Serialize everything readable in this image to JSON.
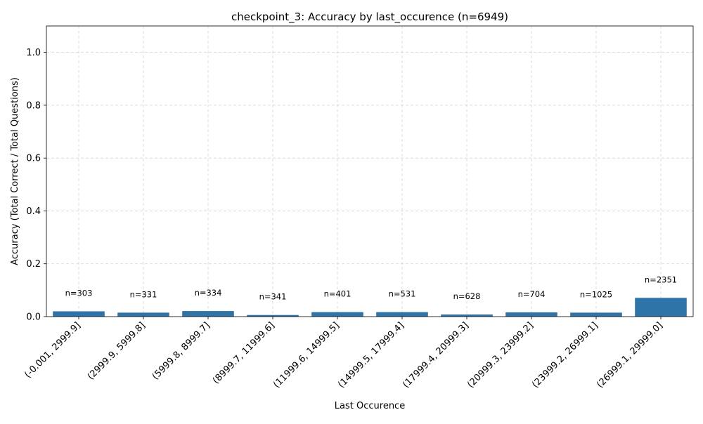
{
  "chart_data": {
    "type": "bar",
    "title": "checkpoint_3: Accuracy by last_occurence (n=6949)",
    "xlabel": "Last Occurence",
    "ylabel": "Accuracy (Total Correct / Total Questions)",
    "ylim": [
      0,
      1.1
    ],
    "yticks": [
      "0.0",
      "0.2",
      "0.4",
      "0.6",
      "0.8",
      "1.0"
    ],
    "grid": true,
    "bar_color": "#2f74a8",
    "categories": [
      "(-0.001, 2999.9]",
      "(2999.9, 5999.8]",
      "(5999.8, 8999.7]",
      "(8999.7, 11999.6]",
      "(11999.6, 14999.5]",
      "(14999.5, 17999.4]",
      "(17999.4, 20999.3]",
      "(20999.3, 23999.2]",
      "(23999.2, 26999.1]",
      "(26999.1, 29999.0]"
    ],
    "values": [
      0.02,
      0.015,
      0.021,
      0.006,
      0.017,
      0.017,
      0.008,
      0.016,
      0.015,
      0.071
    ],
    "data_labels": [
      "n=303",
      "n=331",
      "n=334",
      "n=341",
      "n=401",
      "n=531",
      "n=628",
      "n=704",
      "n=1025",
      "n=2351"
    ]
  }
}
